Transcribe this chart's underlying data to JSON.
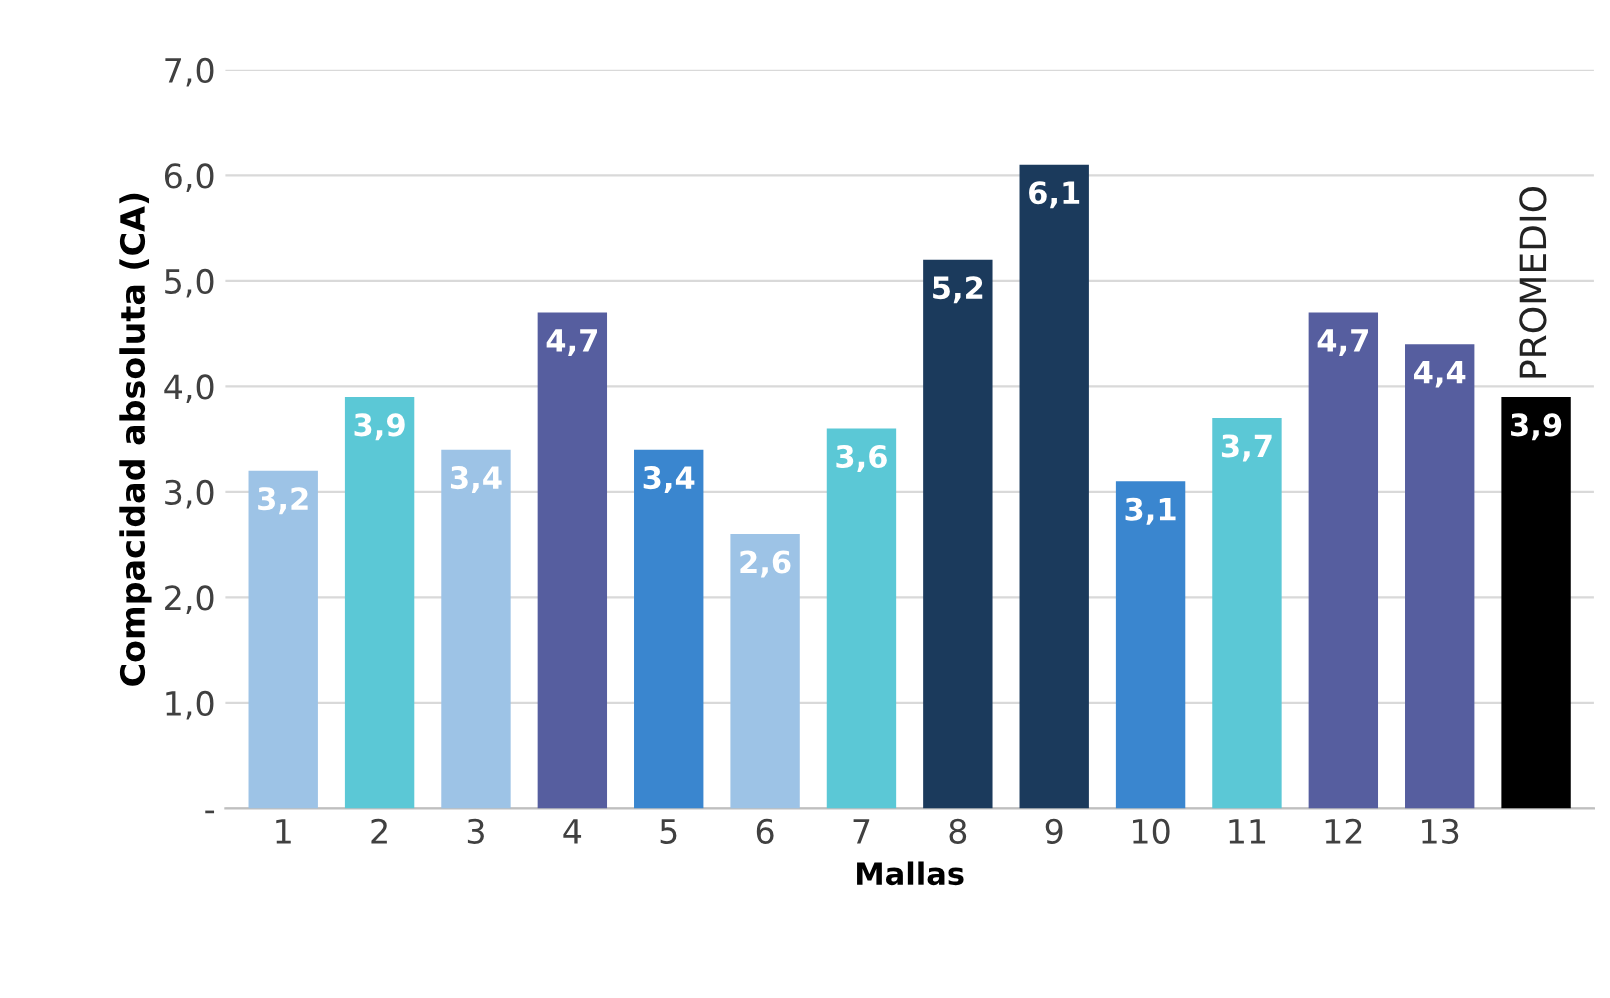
{
  "chart_data": {
    "type": "bar",
    "xlabel": "Mallas",
    "ylabel": "Compacidad absoluta (CA)",
    "categories": [
      "1",
      "2",
      "3",
      "4",
      "5",
      "6",
      "7",
      "8",
      "9",
      "10",
      "11",
      "12",
      "13",
      null
    ],
    "values": [
      3.2,
      3.9,
      3.4,
      4.7,
      3.4,
      2.6,
      3.6,
      5.2,
      6.1,
      3.1,
      3.7,
      4.7,
      4.4,
      3.9
    ],
    "value_labels": [
      "3,2",
      "3,9",
      "3,4",
      "4,7",
      "3,4",
      "2,6",
      "3,6",
      "5,2",
      "6,1",
      "3,1",
      "3,7",
      "4,7",
      "4,4",
      "3,9"
    ],
    "colors": [
      "#9dc3e6",
      "#5bc8d6",
      "#9dc3e6",
      "#565e9f",
      "#3a86cf",
      "#9dc3e6",
      "#5bc8d6",
      "#1b3a5c",
      "#1b3a5c",
      "#3a86cf",
      "#5bc8d6",
      "#565e9f",
      "#565e9f",
      "#000000"
    ],
    "ylim": [
      0,
      7
    ],
    "yticks": [
      {
        "value": 0,
        "label": "-"
      },
      {
        "value": 1,
        "label": "1,0"
      },
      {
        "value": 2,
        "label": "2,0"
      },
      {
        "value": 3,
        "label": "3,0"
      },
      {
        "value": 4,
        "label": "4,0"
      },
      {
        "value": 5,
        "label": "5,0"
      },
      {
        "value": 6,
        "label": "6,0"
      },
      {
        "value": 7,
        "label": "7,0"
      }
    ],
    "grid": "y",
    "annotations": [
      "PROMEDIO"
    ]
  }
}
